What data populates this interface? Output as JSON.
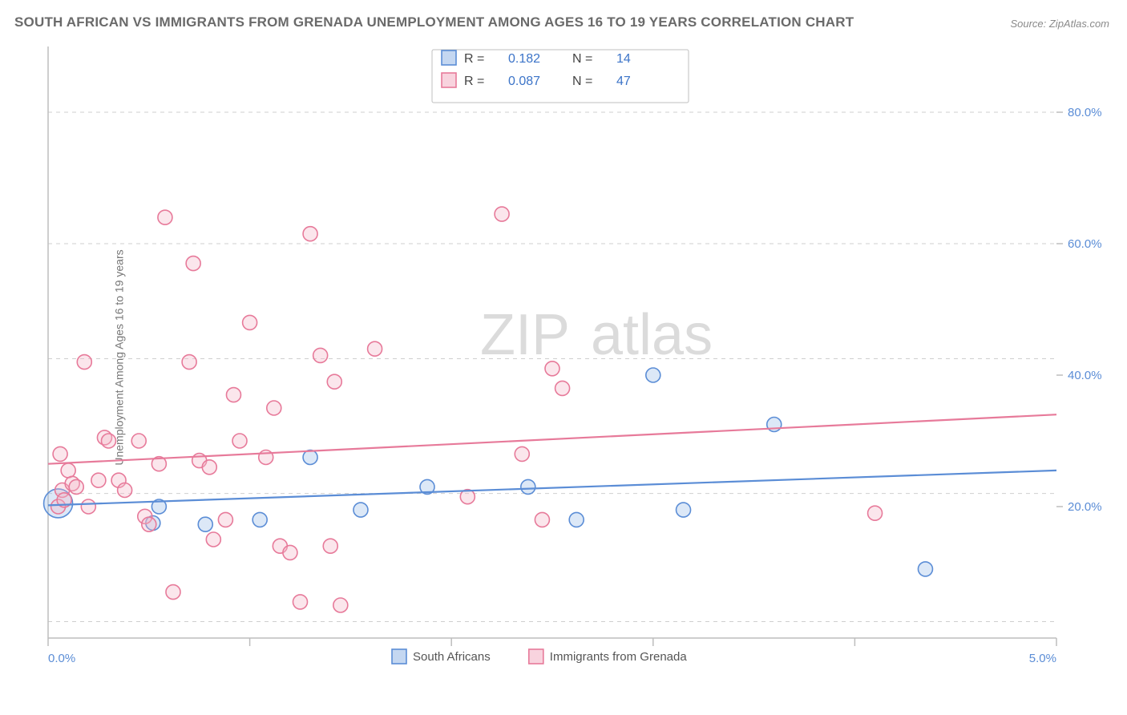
{
  "title": "SOUTH AFRICAN VS IMMIGRANTS FROM GRENADA UNEMPLOYMENT AMONG AGES 16 TO 19 YEARS CORRELATION CHART",
  "source": "Source: ZipAtlas.com",
  "ylabel": "Unemployment Among Ages 16 to 19 years",
  "watermark_a": "ZIP",
  "watermark_b": "atlas",
  "chart": {
    "type": "scatter",
    "background_color": "#ffffff",
    "grid_color": "#cfcfcf",
    "axis_color": "#bdbdbd",
    "tick_label_color": "#5b8dd6",
    "xlim": [
      0.0,
      5.0
    ],
    "ylim": [
      0.0,
      90.0
    ],
    "x_ticks_major": [
      0.0,
      5.0
    ],
    "x_ticks_major_labels": [
      "0.0%",
      "5.0%"
    ],
    "x_ticks_minor": [
      1.0,
      2.0,
      3.0,
      4.0
    ],
    "y_ticks_major": [
      20.0,
      40.0,
      60.0,
      80.0
    ],
    "y_ticks_major_labels": [
      "20.0%",
      "40.0%",
      "60.0%",
      "80.0%"
    ],
    "y_gridlines": [
      2.5,
      22.0,
      42.5,
      60.0,
      80.0
    ],
    "marker_radius_default": 9,
    "marker_stroke_width": 1.6,
    "marker_fill_opacity": 0.35,
    "series": [
      {
        "name": "South Africans",
        "color_stroke": "#5b8dd6",
        "color_fill": "#9cbce8",
        "R": 0.182,
        "N": 14,
        "trend": {
          "y_at_xmin": 20.2,
          "y_at_xmax": 25.5
        },
        "points": [
          {
            "x": 0.05,
            "y": 20.5,
            "r": 18
          },
          {
            "x": 0.52,
            "y": 17.5,
            "r": 9
          },
          {
            "x": 0.55,
            "y": 20.0,
            "r": 9
          },
          {
            "x": 0.78,
            "y": 17.3,
            "r": 9
          },
          {
            "x": 1.05,
            "y": 18.0,
            "r": 9
          },
          {
            "x": 1.3,
            "y": 27.5,
            "r": 9
          },
          {
            "x": 1.55,
            "y": 19.5,
            "r": 9
          },
          {
            "x": 1.88,
            "y": 23.0,
            "r": 9
          },
          {
            "x": 2.38,
            "y": 23.0,
            "r": 9
          },
          {
            "x": 2.62,
            "y": 18.0,
            "r": 9
          },
          {
            "x": 3.0,
            "y": 40.0,
            "r": 9
          },
          {
            "x": 3.15,
            "y": 19.5,
            "r": 9
          },
          {
            "x": 3.6,
            "y": 32.5,
            "r": 9
          },
          {
            "x": 4.35,
            "y": 10.5,
            "r": 9
          }
        ]
      },
      {
        "name": "Immigrants from Grenada",
        "color_stroke": "#e77a9a",
        "color_fill": "#f4b6c8",
        "R": 0.087,
        "N": 47,
        "trend": {
          "y_at_xmin": 26.5,
          "y_at_xmax": 34.0
        },
        "points": [
          {
            "x": 0.05,
            "y": 20.0,
            "r": 9
          },
          {
            "x": 0.06,
            "y": 28.0,
            "r": 9
          },
          {
            "x": 0.07,
            "y": 22.5,
            "r": 9
          },
          {
            "x": 0.08,
            "y": 21.0,
            "r": 9
          },
          {
            "x": 0.1,
            "y": 25.5,
            "r": 9
          },
          {
            "x": 0.12,
            "y": 23.5,
            "r": 9
          },
          {
            "x": 0.14,
            "y": 23.0,
            "r": 9
          },
          {
            "x": 0.18,
            "y": 42.0,
            "r": 9
          },
          {
            "x": 0.2,
            "y": 20.0,
            "r": 9
          },
          {
            "x": 0.25,
            "y": 24.0,
            "r": 9
          },
          {
            "x": 0.28,
            "y": 30.5,
            "r": 9
          },
          {
            "x": 0.3,
            "y": 30.0,
            "r": 9
          },
          {
            "x": 0.35,
            "y": 24.0,
            "r": 9
          },
          {
            "x": 0.38,
            "y": 22.5,
            "r": 9
          },
          {
            "x": 0.45,
            "y": 30.0,
            "r": 9
          },
          {
            "x": 0.48,
            "y": 18.5,
            "r": 9
          },
          {
            "x": 0.5,
            "y": 17.3,
            "r": 9
          },
          {
            "x": 0.55,
            "y": 26.5,
            "r": 9
          },
          {
            "x": 0.58,
            "y": 64.0,
            "r": 9
          },
          {
            "x": 0.62,
            "y": 7.0,
            "r": 9
          },
          {
            "x": 0.7,
            "y": 42.0,
            "r": 9
          },
          {
            "x": 0.72,
            "y": 57.0,
            "r": 9
          },
          {
            "x": 0.75,
            "y": 27.0,
            "r": 9
          },
          {
            "x": 0.8,
            "y": 26.0,
            "r": 9
          },
          {
            "x": 0.82,
            "y": 15.0,
            "r": 9
          },
          {
            "x": 0.88,
            "y": 18.0,
            "r": 9
          },
          {
            "x": 0.92,
            "y": 37.0,
            "r": 9
          },
          {
            "x": 0.95,
            "y": 30.0,
            "r": 9
          },
          {
            "x": 1.0,
            "y": 48.0,
            "r": 9
          },
          {
            "x": 1.08,
            "y": 27.5,
            "r": 9
          },
          {
            "x": 1.12,
            "y": 35.0,
            "r": 9
          },
          {
            "x": 1.15,
            "y": 14.0,
            "r": 9
          },
          {
            "x": 1.2,
            "y": 13.0,
            "r": 9
          },
          {
            "x": 1.25,
            "y": 5.5,
            "r": 9
          },
          {
            "x": 1.3,
            "y": 61.5,
            "r": 9
          },
          {
            "x": 1.35,
            "y": 43.0,
            "r": 9
          },
          {
            "x": 1.4,
            "y": 14.0,
            "r": 9
          },
          {
            "x": 1.42,
            "y": 39.0,
            "r": 9
          },
          {
            "x": 1.45,
            "y": 5.0,
            "r": 9
          },
          {
            "x": 1.62,
            "y": 44.0,
            "r": 9
          },
          {
            "x": 2.08,
            "y": 21.5,
            "r": 9
          },
          {
            "x": 2.25,
            "y": 64.5,
            "r": 9
          },
          {
            "x": 2.35,
            "y": 28.0,
            "r": 9
          },
          {
            "x": 2.45,
            "y": 18.0,
            "r": 9
          },
          {
            "x": 2.5,
            "y": 41.0,
            "r": 9
          },
          {
            "x": 2.55,
            "y": 38.0,
            "r": 9
          },
          {
            "x": 4.1,
            "y": 19.0,
            "r": 9
          }
        ]
      }
    ]
  },
  "legend_top": {
    "rows": [
      {
        "r_label": "R  =",
        "n_label": "N  ="
      },
      {
        "r_label": "R  =",
        "n_label": "N  ="
      }
    ]
  },
  "legend_bottom": {
    "items": [
      {
        "swatch_series": 0
      },
      {
        "swatch_series": 1
      }
    ]
  }
}
